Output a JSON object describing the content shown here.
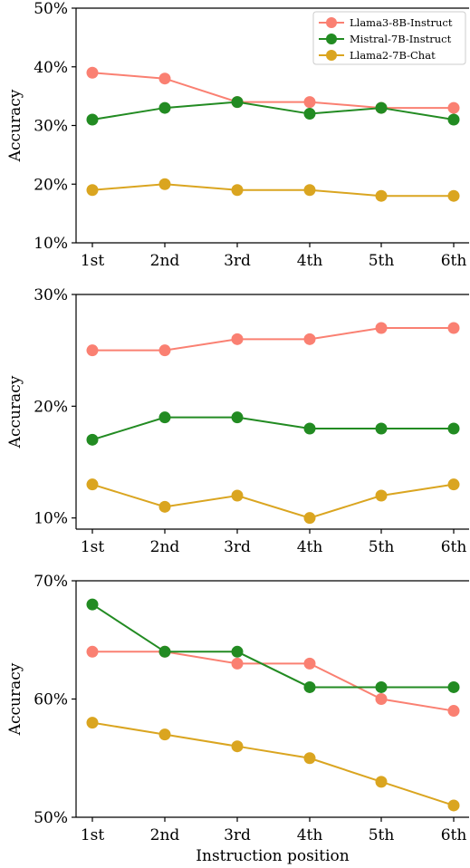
{
  "chart_data": [
    {
      "type": "line",
      "categories": [
        "1st",
        "2nd",
        "3rd",
        "4th",
        "5th",
        "6th"
      ],
      "ylabel": "Accuracy",
      "xlabel": "",
      "ylim": [
        10,
        50
      ],
      "yticks": [
        "10%",
        "20%",
        "30%",
        "40%",
        "50%"
      ],
      "ytick_values": [
        10,
        20,
        30,
        40,
        50
      ],
      "grid": false,
      "legend": "top-right",
      "series": [
        {
          "name": "Llama3-8B-Instruct",
          "color": "#fa8072",
          "values": [
            39,
            38,
            34,
            34,
            33,
            33
          ]
        },
        {
          "name": "Mistral-7B-Instruct",
          "color": "#228b22",
          "values": [
            31,
            33,
            34,
            32,
            33,
            31
          ]
        },
        {
          "name": "Llama2-7B-Chat",
          "color": "#daa520",
          "values": [
            19,
            20,
            19,
            19,
            18,
            18
          ]
        }
      ]
    },
    {
      "type": "line",
      "categories": [
        "1st",
        "2nd",
        "3rd",
        "4th",
        "5th",
        "6th"
      ],
      "ylabel": "Accuracy",
      "xlabel": "",
      "ylim": [
        9,
        30
      ],
      "yticks": [
        "10%",
        "20%",
        "30%"
      ],
      "ytick_values": [
        10,
        20,
        30
      ],
      "grid": false,
      "series": [
        {
          "name": "Llama3-8B-Instruct",
          "color": "#fa8072",
          "values": [
            25,
            25,
            26,
            26,
            27,
            27
          ]
        },
        {
          "name": "Mistral-7B-Instruct",
          "color": "#228b22",
          "values": [
            17,
            19,
            19,
            18,
            18,
            18
          ]
        },
        {
          "name": "Llama2-7B-Chat",
          "color": "#daa520",
          "values": [
            13,
            11,
            12,
            10,
            12,
            13
          ]
        }
      ]
    },
    {
      "type": "line",
      "categories": [
        "1st",
        "2nd",
        "3rd",
        "4th",
        "5th",
        "6th"
      ],
      "ylabel": "Accuracy",
      "xlabel": "Instruction position",
      "ylim": [
        50,
        70
      ],
      "yticks": [
        "50%",
        "60%",
        "70%"
      ],
      "ytick_values": [
        50,
        60,
        70
      ],
      "grid": false,
      "series": [
        {
          "name": "Llama3-8B-Instruct",
          "color": "#fa8072",
          "values": [
            64,
            64,
            63,
            63,
            60,
            59
          ]
        },
        {
          "name": "Mistral-7B-Instruct",
          "color": "#228b22",
          "values": [
            68,
            64,
            64,
            61,
            61,
            61
          ]
        },
        {
          "name": "Llama2-7B-Chat",
          "color": "#daa520",
          "values": [
            58,
            57,
            56,
            55,
            53,
            51
          ]
        }
      ]
    }
  ]
}
